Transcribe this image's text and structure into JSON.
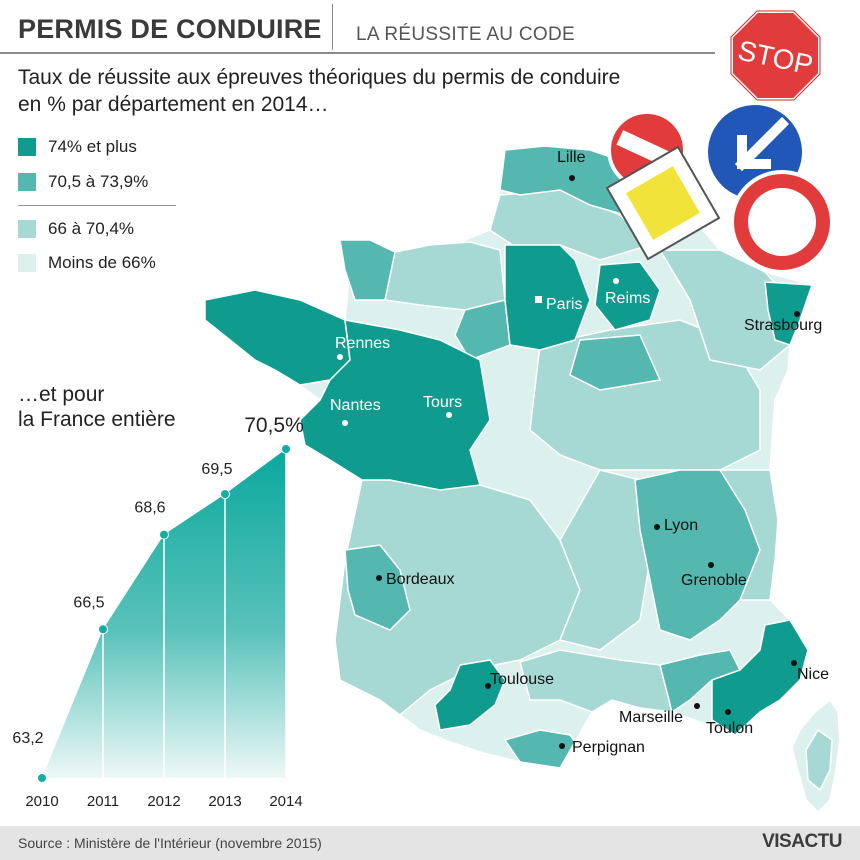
{
  "header": {
    "title": "PERMIS DE CONDUIRE",
    "subtitle": "LA RÉUSSITE AU CODE"
  },
  "intro": {
    "line1": "Taux de réussite aux épreuves théoriques du permis de conduire",
    "line2": "en % par département en 2014…"
  },
  "legend": {
    "items": [
      {
        "label": "74% et plus",
        "color": "#0f9c8f"
      },
      {
        "label": "70,5 à 73,9%",
        "color": "#55b8b0"
      },
      {
        "label": "66 à 70,4%",
        "color": "#a6d8d4"
      },
      {
        "label": "Moins de 66%",
        "color": "#dcf0ee"
      }
    ]
  },
  "map": {
    "cities": [
      "Lille",
      "Paris",
      "Reims",
      "Strasbourg",
      "Rennes",
      "Nantes",
      "Tours",
      "Lyon",
      "Grenoble",
      "Bordeaux",
      "Toulouse",
      "Nice",
      "Marseille",
      "Toulon",
      "Perpignan"
    ]
  },
  "signs": {
    "stop_text": "STOP",
    "icons": [
      "stop-sign-icon",
      "no-entry-sign-icon",
      "priority-road-sign-icon",
      "keep-left-sign-icon",
      "no-vehicles-sign-icon"
    ]
  },
  "national": {
    "label_line1": "…et pour",
    "label_line2": "la France entière",
    "unit": "%",
    "chart_data": {
      "type": "area",
      "title": "",
      "x": [
        "2010",
        "2011",
        "2012",
        "2013",
        "2014"
      ],
      "values": [
        63.2,
        66.5,
        68.6,
        69.5,
        70.5
      ],
      "value_labels": [
        "63,2",
        "66,5",
        "68,6",
        "69,5",
        "70,5"
      ],
      "ylim": [
        63.2,
        70.5
      ],
      "xlabel": "",
      "ylabel": "",
      "grid": false,
      "color": "#12ada3"
    }
  },
  "footer": {
    "source": "Source : Ministère de l'Intérieur (novembre 2015)",
    "brand": "VISACTU"
  }
}
